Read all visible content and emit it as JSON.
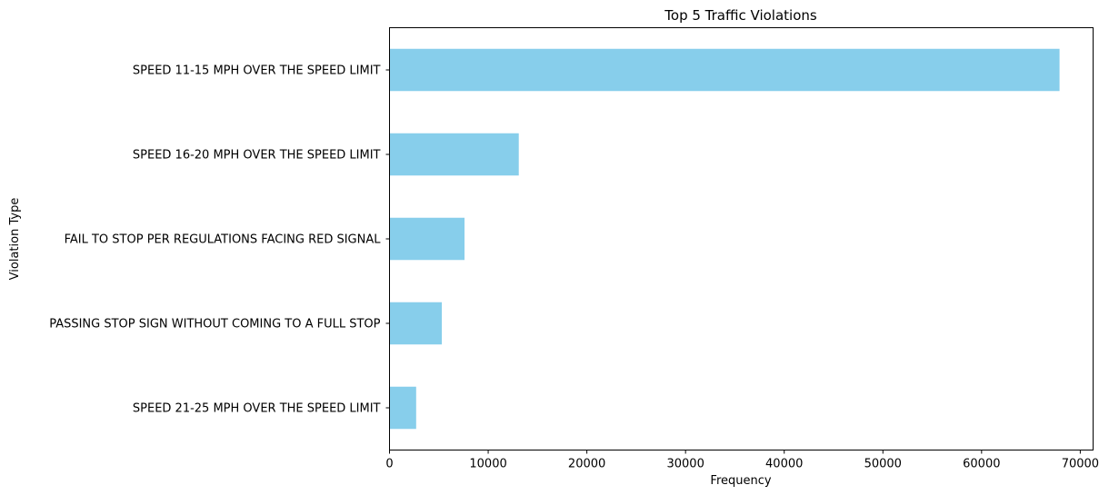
{
  "chart_data": {
    "type": "bar",
    "orientation": "horizontal",
    "title": "Top 5 Traffic Violations",
    "xlabel": "Frequency",
    "ylabel": "Violation Type",
    "categories": [
      "SPEED 11-15 MPH OVER THE SPEED LIMIT",
      "SPEED 16-20 MPH OVER THE SPEED LIMIT",
      "FAIL TO STOP PER REGULATIONS FACING RED SIGNAL",
      "PASSING STOP SIGN WITHOUT COMING TO A FULL STOP",
      "SPEED 21-25 MPH OVER THE SPEED LIMIT"
    ],
    "values": [
      67900,
      13100,
      7600,
      5300,
      2700
    ],
    "xlim": [
      0,
      71300
    ],
    "xticks": [
      0,
      10000,
      20000,
      30000,
      40000,
      50000,
      60000,
      70000
    ],
    "bar_color": "#87ceeb",
    "grid": false,
    "legend": "none"
  }
}
